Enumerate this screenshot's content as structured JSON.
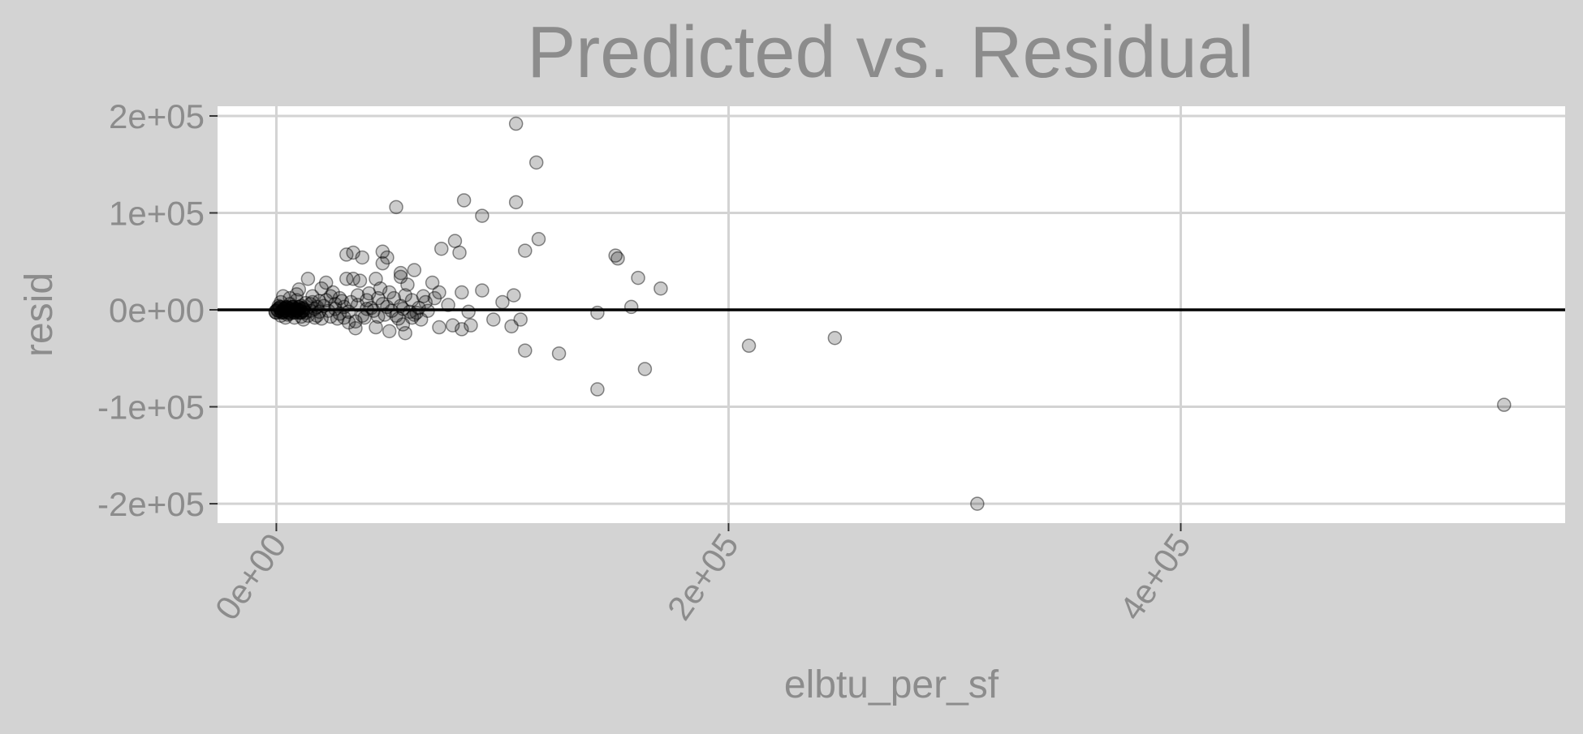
{
  "chart_data": {
    "type": "scatter",
    "title": "Predicted vs. Residual",
    "xlabel": "elbtu_per_sf",
    "ylabel": "resid",
    "xlim": [
      -26000,
      570000
    ],
    "ylim": [
      -220000,
      210000
    ],
    "x_ticks": [
      {
        "value": 0,
        "label": "0e+00"
      },
      {
        "value": 200000,
        "label": "2e+05"
      },
      {
        "value": 400000,
        "label": "4e+05"
      }
    ],
    "y_ticks": [
      {
        "value": 200000,
        "label": "2e+05"
      },
      {
        "value": 100000,
        "label": "1e+05"
      },
      {
        "value": 0,
        "label": "0e+00"
      },
      {
        "value": -100000,
        "label": "-1e+05"
      },
      {
        "value": -200000,
        "label": "-2e+05"
      }
    ],
    "hline": 0,
    "grid": true,
    "legend": "none",
    "colors": {
      "background": "#d3d3d3",
      "panel": "#ffffff",
      "grid": "#d3d3d3",
      "text": "#8c8c8c",
      "point_fill": "rgba(0,0,0,0.2)",
      "point_stroke": "rgba(0,0,0,0.45)",
      "hline": "#000000"
    },
    "points": [
      [
        106000,
        192000
      ],
      [
        115000,
        152000
      ],
      [
        106000,
        111000
      ],
      [
        116000,
        73000
      ],
      [
        110000,
        61000
      ],
      [
        83000,
        113000
      ],
      [
        91000,
        97000
      ],
      [
        53000,
        106000
      ],
      [
        150000,
        56000
      ],
      [
        151000,
        53000
      ],
      [
        160000,
        33000
      ],
      [
        170000,
        22000
      ],
      [
        157000,
        3000
      ],
      [
        142000,
        -3000
      ],
      [
        110000,
        -42000
      ],
      [
        125000,
        -45000
      ],
      [
        142000,
        -82000
      ],
      [
        163000,
        -61000
      ],
      [
        209000,
        -37000
      ],
      [
        247000,
        -29000
      ],
      [
        310000,
        -200000
      ],
      [
        543000,
        -98000
      ],
      [
        79000,
        71000
      ],
      [
        81000,
        59000
      ],
      [
        73000,
        63000
      ],
      [
        61000,
        41000
      ],
      [
        34000,
        59000
      ],
      [
        31000,
        57000
      ],
      [
        47000,
        60000
      ],
      [
        49000,
        54000
      ],
      [
        38000,
        54000
      ],
      [
        47000,
        48000
      ],
      [
        55000,
        38000
      ],
      [
        55000,
        34000
      ],
      [
        69000,
        28000
      ],
      [
        65000,
        14000
      ],
      [
        72000,
        18000
      ],
      [
        82000,
        18000
      ],
      [
        91000,
        20000
      ],
      [
        105000,
        15000
      ],
      [
        100000,
        8000
      ],
      [
        96000,
        -10000
      ],
      [
        104000,
        -17000
      ],
      [
        108000,
        -10000
      ],
      [
        85000,
        -2000
      ],
      [
        86000,
        -16000
      ],
      [
        82000,
        -20000
      ],
      [
        78000,
        -16000
      ],
      [
        72000,
        -18000
      ],
      [
        56000,
        -15000
      ],
      [
        57000,
        -24000
      ],
      [
        50000,
        -22000
      ],
      [
        60000,
        -8000
      ],
      [
        45000,
        -7000
      ],
      [
        35000,
        -12000
      ],
      [
        35000,
        -19000
      ],
      [
        44000,
        -18000
      ],
      [
        31000,
        32000
      ],
      [
        34000,
        32000
      ],
      [
        37000,
        30000
      ],
      [
        44000,
        32000
      ],
      [
        46000,
        22000
      ],
      [
        50000,
        18000
      ],
      [
        58000,
        26000
      ],
      [
        52000,
        12000
      ],
      [
        40000,
        10000
      ],
      [
        36000,
        5000
      ],
      [
        28000,
        12000
      ],
      [
        25000,
        18000
      ],
      [
        22000,
        28000
      ],
      [
        14000,
        32000
      ],
      [
        20000,
        22000
      ],
      [
        10000,
        21000
      ],
      [
        16000,
        14000
      ],
      [
        26000,
        6000
      ],
      [
        32000,
        -2000
      ],
      [
        42000,
        2000
      ],
      [
        48000,
        -5000
      ],
      [
        55000,
        4000
      ],
      [
        60000,
        10000
      ],
      [
        62000,
        -3000
      ],
      [
        66000,
        8000
      ],
      [
        70000,
        12000
      ],
      [
        76000,
        5000
      ],
      [
        64000,
        -10000
      ],
      [
        54000,
        -9000
      ],
      [
        30000,
        -8000
      ],
      [
        18000,
        -6000
      ],
      [
        12000,
        -10000
      ],
      [
        24000,
        -7000
      ],
      [
        8000,
        -8000
      ],
      [
        6000,
        -4000
      ],
      [
        4000,
        2000
      ],
      [
        2000,
        8000
      ],
      [
        6000,
        12000
      ],
      [
        9000,
        10000
      ],
      [
        11000,
        4000
      ],
      [
        13000,
        -3000
      ],
      [
        15000,
        6000
      ],
      [
        17000,
        1000
      ],
      [
        19000,
        -2000
      ],
      [
        21000,
        4000
      ],
      [
        23000,
        -1000
      ],
      [
        26000,
        1000
      ],
      [
        28000,
        -4000
      ],
      [
        30000,
        3000
      ],
      [
        33000,
        8000
      ],
      [
        38000,
        -6000
      ],
      [
        40000,
        1000
      ],
      [
        43000,
        -1000
      ],
      [
        47000,
        6000
      ],
      [
        51000,
        -1000
      ],
      [
        56000,
        1000
      ],
      [
        59000,
        -2000
      ],
      [
        63000,
        2000
      ],
      [
        67000,
        -1000
      ],
      [
        3000,
        -2000
      ],
      [
        5000,
        -5000
      ],
      [
        7000,
        3000
      ],
      [
        10000,
        -3000
      ],
      [
        12000,
        2000
      ],
      [
        14000,
        -6000
      ],
      [
        16000,
        8000
      ],
      [
        18000,
        3000
      ],
      [
        20000,
        -9000
      ],
      [
        22000,
        10000
      ],
      [
        9000,
        16000
      ],
      [
        3000,
        14000
      ],
      [
        1000,
        4000
      ],
      [
        2000,
        -6000
      ],
      [
        4000,
        -8000
      ],
      [
        6000,
        6000
      ],
      [
        8000,
        0
      ],
      [
        11000,
        -7000
      ],
      [
        13000,
        7000
      ],
      [
        15000,
        -1000
      ],
      [
        17000,
        -8000
      ],
      [
        19000,
        9000
      ],
      [
        24000,
        14000
      ],
      [
        27000,
        -9000
      ],
      [
        29000,
        9000
      ],
      [
        32000,
        -13000
      ],
      [
        36000,
        15000
      ],
      [
        39000,
        -8000
      ],
      [
        41000,
        17000
      ],
      [
        45000,
        12000
      ],
      [
        49000,
        3000
      ],
      [
        53000,
        -6000
      ],
      [
        57000,
        15000
      ],
      [
        61000,
        -5000
      ]
    ]
  }
}
